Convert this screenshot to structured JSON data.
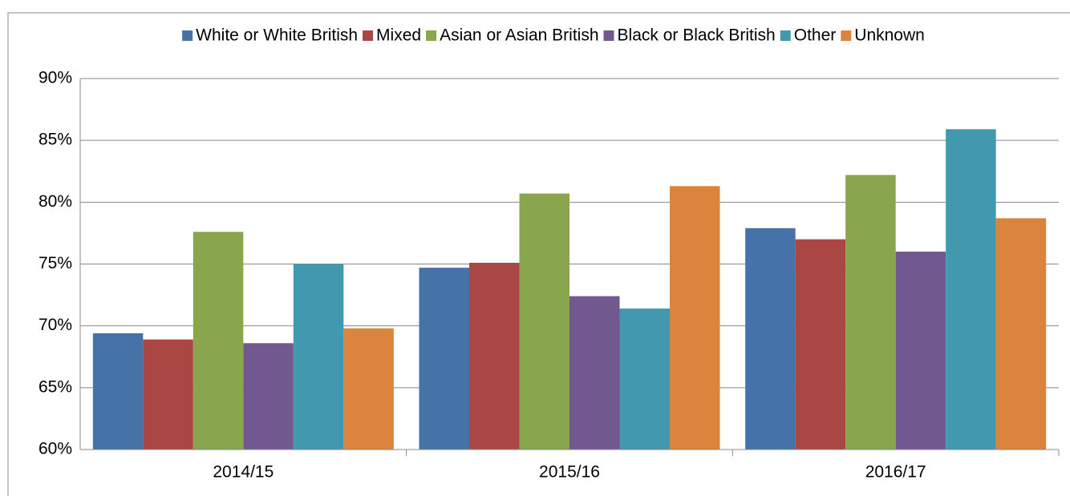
{
  "chart_data": {
    "type": "bar",
    "categories": [
      "2014/15",
      "2015/16",
      "2016/17"
    ],
    "series": [
      {
        "name": "White or White British",
        "color": "#4572A7",
        "values": [
          69.4,
          74.7,
          77.9
        ]
      },
      {
        "name": "Mixed",
        "color": "#AA4643",
        "values": [
          68.9,
          75.1,
          77.0
        ]
      },
      {
        "name": "Asian or Asian British",
        "color": "#89A54E",
        "values": [
          77.6,
          80.7,
          82.2
        ]
      },
      {
        "name": "Black or Black British",
        "color": "#71588F",
        "values": [
          68.6,
          72.4,
          76.0
        ]
      },
      {
        "name": "Other",
        "color": "#4198AF",
        "values": [
          75.0,
          71.4,
          85.9
        ]
      },
      {
        "name": "Unknown",
        "color": "#DB843D",
        "values": [
          69.8,
          81.3,
          78.7
        ]
      }
    ],
    "ylim": [
      60,
      90
    ],
    "yticks": [
      {
        "value": 60,
        "label": "60%"
      },
      {
        "value": 65,
        "label": "65%"
      },
      {
        "value": 70,
        "label": "70%"
      },
      {
        "value": 75,
        "label": "75%"
      },
      {
        "value": 80,
        "label": "80%"
      },
      {
        "value": 85,
        "label": "85%"
      },
      {
        "value": 90,
        "label": "90%"
      }
    ],
    "grid": true,
    "legend": "top"
  }
}
